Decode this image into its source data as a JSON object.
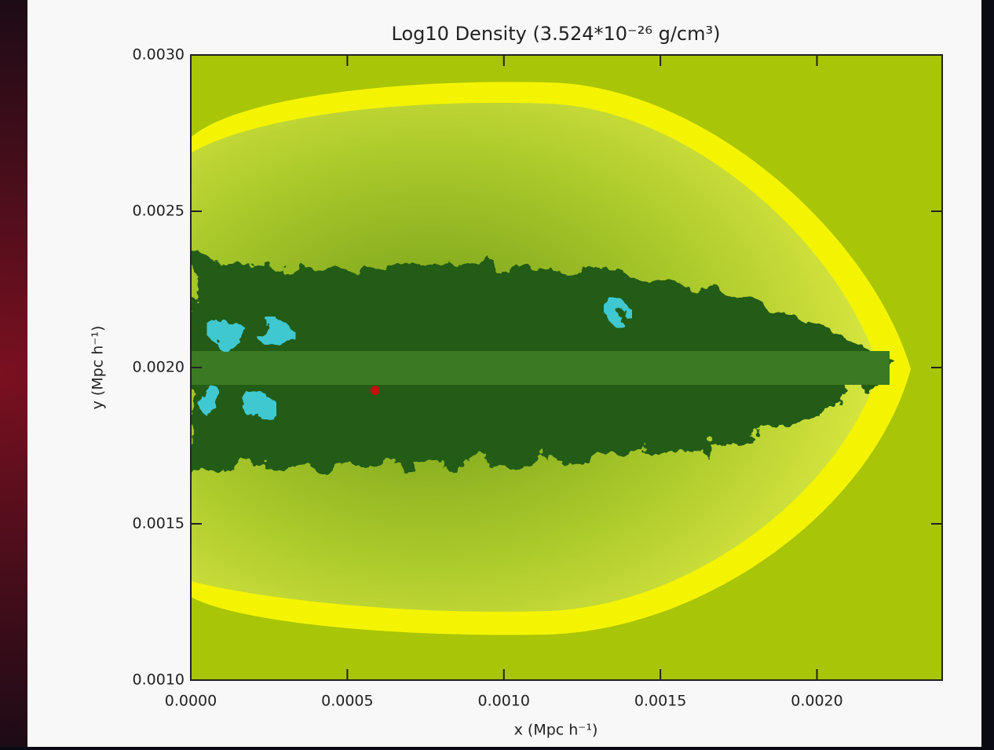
{
  "chart_data": {
    "type": "image",
    "title": "Log10 Density (3.524*10⁻²⁶ g/cm³)",
    "x_label": "x (Mpc h⁻¹)",
    "y_label": "y (Mpc h⁻¹)",
    "xlim": [
      0,
      0.0024
    ],
    "ylim": [
      0.001,
      0.003
    ],
    "xticks": [
      {
        "value": 0,
        "label": "0.0000"
      },
      {
        "value": 0.0005,
        "label": "0.0005"
      },
      {
        "value": 0.001,
        "label": "0.0010"
      },
      {
        "value": 0.0015,
        "label": "0.0015"
      },
      {
        "value": 0.002,
        "label": "0.0020"
      }
    ],
    "yticks": [
      {
        "value": 0.001,
        "label": "0.0010"
      },
      {
        "value": 0.0015,
        "label": "0.0015"
      },
      {
        "value": 0.002,
        "label": "0.0020"
      },
      {
        "value": 0.0025,
        "label": "0.0025"
      },
      {
        "value": 0.003,
        "label": "0.0030"
      }
    ]
  }
}
